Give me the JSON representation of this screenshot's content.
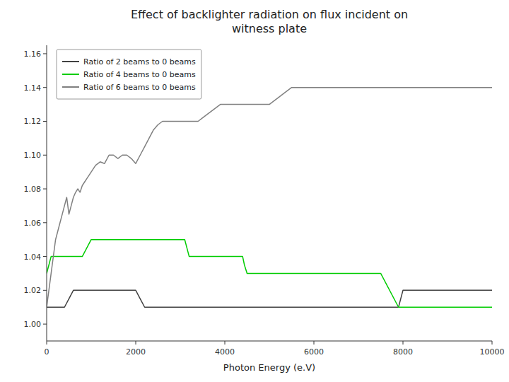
{
  "chart_data": {
    "type": "line",
    "title": "Effect of backlighter radiation on flux incident on\nwitness plate",
    "xlabel": "Photon Energy (e.V)",
    "xlim": [
      0,
      10000
    ],
    "ylim": [
      0.99,
      1.165
    ],
    "xticks": [
      0,
      2000,
      4000,
      6000,
      8000,
      10000
    ],
    "yticks": [
      {
        "value": 1.0,
        "label": "1.00"
      },
      1.02,
      1.04,
      1.06,
      1.08,
      {
        "value": 1.1,
        "label": "1.10"
      },
      1.12,
      1.14,
      1.16
    ],
    "grid": false,
    "legend": "upper left",
    "series": [
      {
        "name": "Ratio of 2 beams to 0 beams",
        "color": "#404040",
        "x": [
          0,
          200,
          400,
          500,
          600,
          700,
          800,
          1000,
          1200,
          1400,
          1600,
          1800,
          2000,
          2100,
          2200,
          2400,
          2600,
          2800,
          3000,
          3500,
          4000,
          4500,
          5000,
          5500,
          6000,
          6500,
          7000,
          7500,
          7900,
          8000,
          8500,
          9000,
          9500,
          10000
        ],
        "values": [
          1.01,
          1.01,
          1.01,
          1.015,
          1.02,
          1.02,
          1.02,
          1.02,
          1.02,
          1.02,
          1.02,
          1.02,
          1.02,
          1.015,
          1.01,
          1.01,
          1.01,
          1.01,
          1.01,
          1.01,
          1.01,
          1.01,
          1.01,
          1.01,
          1.01,
          1.01,
          1.01,
          1.01,
          1.01,
          1.02,
          1.02,
          1.02,
          1.02,
          1.02
        ]
      },
      {
        "name": "Ratio of 4 beams to 0 beams",
        "color": "#00cc00",
        "x": [
          0,
          100,
          200,
          400,
          600,
          800,
          1000,
          1200,
          1400,
          1600,
          1800,
          2000,
          2200,
          2400,
          2600,
          2800,
          3000,
          3100,
          3200,
          3400,
          3600,
          3800,
          4000,
          4200,
          4400,
          4440,
          4500,
          4600,
          4800,
          5000,
          5200,
          5400,
          5600,
          5800,
          6000,
          6500,
          7000,
          7500,
          7900,
          8000,
          8500,
          9000,
          9500,
          10000
        ],
        "values": [
          1.03,
          1.04,
          1.04,
          1.04,
          1.04,
          1.04,
          1.05,
          1.05,
          1.05,
          1.05,
          1.05,
          1.05,
          1.05,
          1.05,
          1.05,
          1.05,
          1.05,
          1.05,
          1.04,
          1.04,
          1.04,
          1.04,
          1.04,
          1.04,
          1.04,
          1.035,
          1.03,
          1.03,
          1.03,
          1.03,
          1.03,
          1.03,
          1.03,
          1.03,
          1.03,
          1.03,
          1.03,
          1.03,
          1.01,
          1.01,
          1.01,
          1.01,
          1.01,
          1.01
        ]
      },
      {
        "name": "Ratio of 6 beams to 0 beams",
        "color": "#808080",
        "x": [
          0,
          50,
          100,
          150,
          200,
          250,
          300,
          350,
          400,
          450,
          500,
          550,
          600,
          650,
          700,
          750,
          800,
          850,
          900,
          950,
          1000,
          1100,
          1200,
          1300,
          1400,
          1500,
          1600,
          1700,
          1800,
          1900,
          2000,
          2100,
          2200,
          2300,
          2400,
          2500,
          2600,
          2700,
          2800,
          2900,
          3000,
          3100,
          3200,
          3300,
          3400,
          3500,
          3600,
          3700,
          3800,
          3900,
          4000,
          4100,
          4200,
          4300,
          4400,
          4500,
          4600,
          4700,
          4800,
          4900,
          5000,
          5500,
          6000,
          6500,
          7000,
          7100,
          7500,
          8000,
          8500,
          9000,
          9500,
          10000
        ],
        "values": [
          1.01,
          1.02,
          1.03,
          1.04,
          1.05,
          1.055,
          1.06,
          1.065,
          1.07,
          1.075,
          1.065,
          1.07,
          1.075,
          1.078,
          1.08,
          1.078,
          1.082,
          1.084,
          1.086,
          1.088,
          1.09,
          1.094,
          1.096,
          1.095,
          1.1,
          1.1,
          1.098,
          1.1,
          1.1,
          1.098,
          1.095,
          1.1,
          1.105,
          1.11,
          1.115,
          1.118,
          1.12,
          1.12,
          1.12,
          1.12,
          1.12,
          1.12,
          1.12,
          1.12,
          1.12,
          1.122,
          1.124,
          1.126,
          1.128,
          1.13,
          1.13,
          1.13,
          1.13,
          1.13,
          1.13,
          1.13,
          1.13,
          1.13,
          1.13,
          1.13,
          1.13,
          1.14,
          1.14,
          1.14,
          1.14,
          1.14,
          1.14,
          1.14,
          1.14,
          1.14,
          1.14,
          1.14
        ]
      }
    ]
  }
}
